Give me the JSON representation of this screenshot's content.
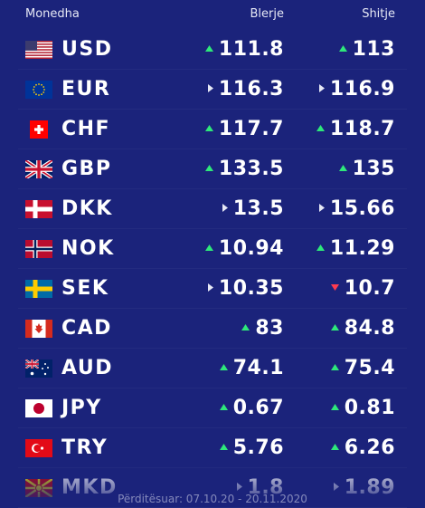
{
  "header": {
    "currency": "Monedha",
    "buy": "Blerje",
    "sell": "Shitje"
  },
  "rows": [
    {
      "code": "USD",
      "buy": 111.8,
      "buy_trend": "up",
      "sell": 113,
      "sell_trend": "up"
    },
    {
      "code": "EUR",
      "buy": 116.3,
      "buy_trend": "same",
      "sell": 116.9,
      "sell_trend": "same"
    },
    {
      "code": "CHF",
      "buy": 117.7,
      "buy_trend": "up",
      "sell": 118.7,
      "sell_trend": "up"
    },
    {
      "code": "GBP",
      "buy": 133.5,
      "buy_trend": "up",
      "sell": 135,
      "sell_trend": "up"
    },
    {
      "code": "DKK",
      "buy": 13.5,
      "buy_trend": "same",
      "sell": 15.66,
      "sell_trend": "same"
    },
    {
      "code": "NOK",
      "buy": 10.94,
      "buy_trend": "up",
      "sell": 11.29,
      "sell_trend": "up"
    },
    {
      "code": "SEK",
      "buy": 10.35,
      "buy_trend": "same",
      "sell": 10.7,
      "sell_trend": "down"
    },
    {
      "code": "CAD",
      "buy": 83,
      "buy_trend": "up",
      "sell": 84.8,
      "sell_trend": "up"
    },
    {
      "code": "AUD",
      "buy": 74.1,
      "buy_trend": "up",
      "sell": 75.4,
      "sell_trend": "up"
    },
    {
      "code": "JPY",
      "buy": 0.67,
      "buy_trend": "up",
      "sell": 0.81,
      "sell_trend": "up"
    },
    {
      "code": "TRY",
      "buy": 5.76,
      "buy_trend": "up",
      "sell": 6.26,
      "sell_trend": "up"
    },
    {
      "code": "MKD",
      "buy": 1.8,
      "buy_trend": "same",
      "sell": 1.89,
      "sell_trend": "same"
    }
  ],
  "footer": "Përditësuar: 07.10.20 - 20.11.2020"
}
